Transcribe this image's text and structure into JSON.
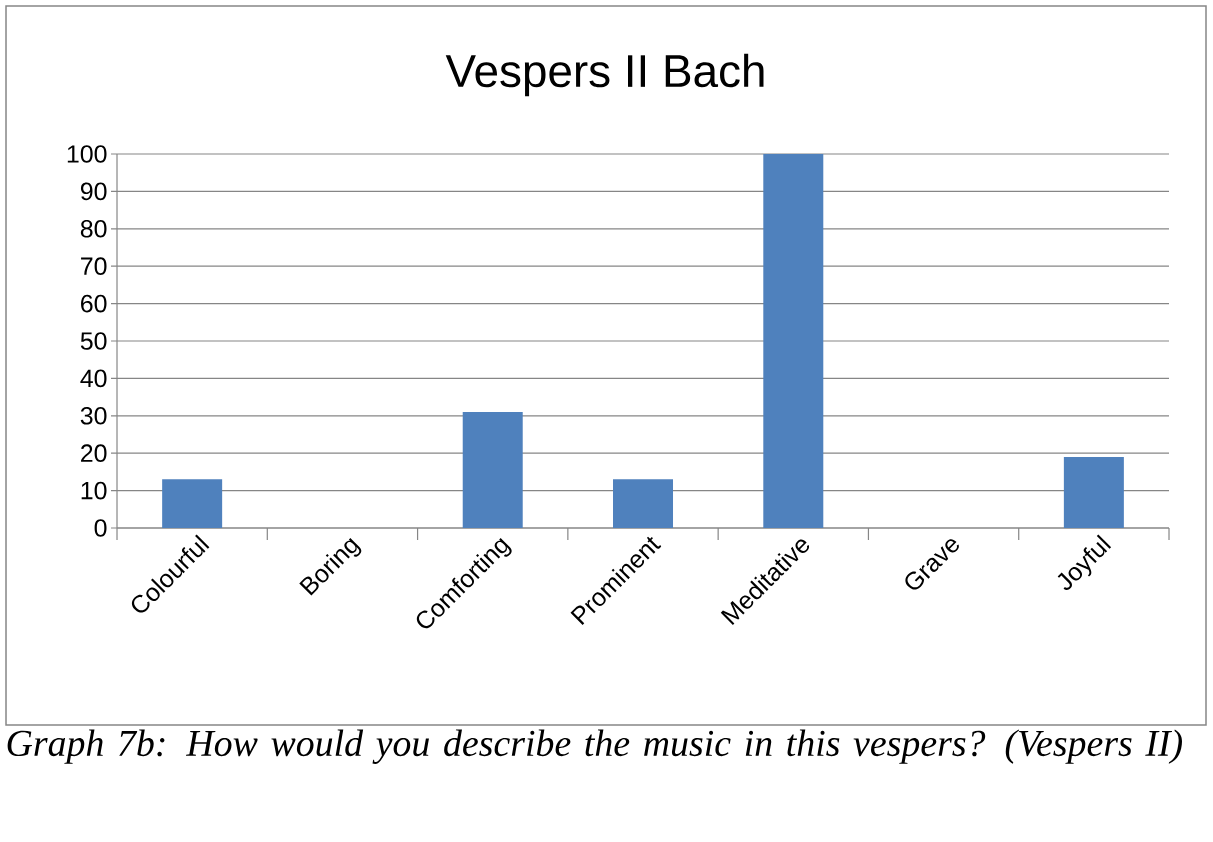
{
  "chart_data": {
    "type": "bar",
    "title": "Vespers II Bach",
    "categories": [
      "Colourful",
      "Boring",
      "Comforting",
      "Prominent",
      "Meditative",
      "Grave",
      "Joyful"
    ],
    "values": [
      13,
      0,
      31,
      13,
      100,
      0,
      19
    ],
    "color": "#4f81bd",
    "ylim": [
      0,
      100
    ],
    "yticks": [
      0,
      10,
      20,
      30,
      40,
      50,
      60,
      70,
      80,
      90,
      100
    ],
    "grid": "y",
    "annotations": [
      "Graph 7b: How would you describe the music in this vespers? (Vespers II)"
    ]
  }
}
